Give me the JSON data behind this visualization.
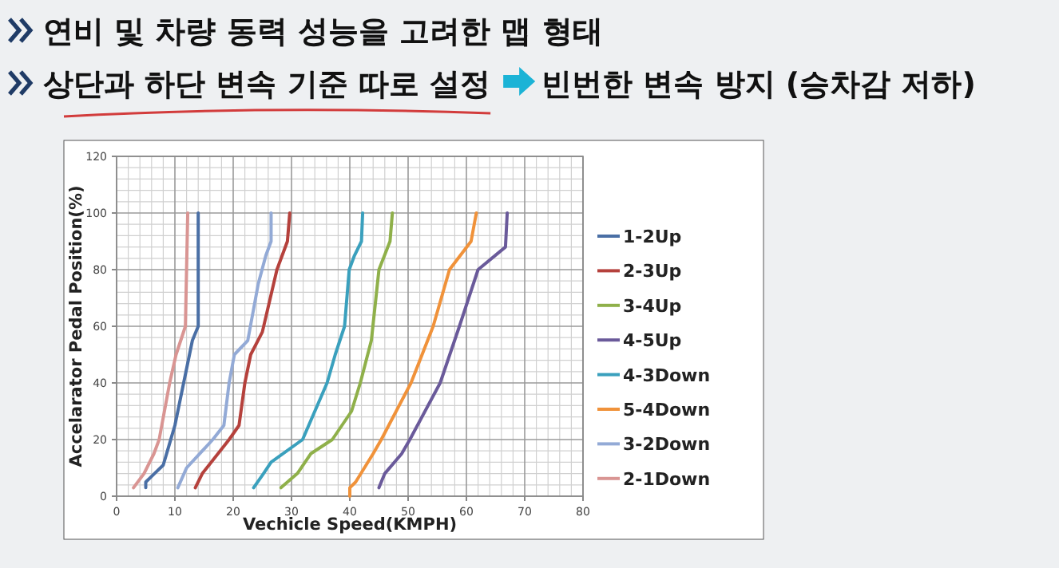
{
  "chart_data": {
    "type": "line",
    "title": "연비 및 차량 동력 성능을 고려한 맵 형태",
    "subtitle": "상단과 하단 변속 기준 따로 설정",
    "annotations": [
      "빈번한 변속 방지 (승차감 저하)"
    ],
    "xlabel": "Vechicle Speed(KMPH)",
    "ylabel": "Accelarator Pedal Position(%)",
    "xlim": [
      0,
      80
    ],
    "xticks": [
      0,
      10,
      20,
      30,
      40,
      50,
      60,
      70,
      80
    ],
    "ylim": [
      0,
      120
    ],
    "yticks": [
      0,
      20,
      40,
      60,
      80,
      100,
      120
    ],
    "grid": true,
    "legend": "right",
    "marker": "none",
    "line_style": "solid",
    "series": [
      {
        "name": "1-2Up",
        "color": "#4a6fa5",
        "x": [
          5,
          5,
          6.5,
          8,
          9,
          10,
          11,
          12,
          13,
          14,
          14
        ],
        "values": [
          3,
          5,
          8,
          11,
          18,
          25,
          35,
          45,
          55,
          60,
          100
        ]
      },
      {
        "name": "2-3Up",
        "color": "#b5413c",
        "x": [
          13.5,
          14.7,
          19.3,
          21,
          22,
          23,
          25,
          27.5,
          29.3,
          29.7
        ],
        "values": [
          3,
          8,
          20,
          25,
          40,
          50,
          58,
          80,
          90,
          100
        ]
      },
      {
        "name": "3-4Up",
        "color": "#8fb04a",
        "x": [
          28.2,
          31,
          33.3,
          37,
          40.3,
          41.8,
          43.7,
          45,
          46.9,
          47.3
        ],
        "values": [
          3,
          8,
          15,
          20,
          30,
          40,
          55,
          80,
          90,
          100
        ]
      },
      {
        "name": "4-5Up",
        "color": "#6a5a9a",
        "x": [
          45,
          46,
          48.9,
          50.3,
          55.5,
          58.8,
          62,
          66.7,
          67
        ],
        "values": [
          3,
          8,
          15,
          20,
          40,
          60,
          80,
          88,
          100
        ]
      },
      {
        "name": "4-3Down",
        "color": "#3aa0bd",
        "x": [
          23.5,
          25.2,
          26.5,
          31.9,
          36.1,
          37.5,
          39.1,
          39.9,
          40.8,
          42,
          42.2
        ],
        "values": [
          3,
          8,
          12,
          20,
          40,
          50,
          60,
          80,
          85,
          90,
          100
        ]
      },
      {
        "name": "5-4Down",
        "color": "#f0923a",
        "x": [
          40,
          40,
          41,
          44,
          45.4,
          50.5,
          52.4,
          54.3,
          55.7,
          57.1,
          60.8,
          61.7
        ],
        "values": [
          0,
          3,
          5,
          15,
          20,
          40,
          50,
          60,
          70,
          80,
          90,
          100
        ]
      },
      {
        "name": "3-2Down",
        "color": "#93aad6",
        "x": [
          10.5,
          12,
          16.5,
          18.4,
          19.3,
          20.2,
          22.5,
          24.3,
          25.6,
          26.5,
          26.5
        ],
        "values": [
          3,
          10,
          20,
          25,
          40,
          50,
          55,
          75,
          85,
          90,
          100
        ]
      },
      {
        "name": "2-1Down",
        "color": "#d99593",
        "x": [
          2.9,
          4.7,
          6.4,
          7.3,
          9.1,
          10.2,
          11.8,
          12.2
        ],
        "values": [
          3,
          8,
          15,
          20,
          40,
          50,
          60,
          100
        ]
      }
    ]
  }
}
